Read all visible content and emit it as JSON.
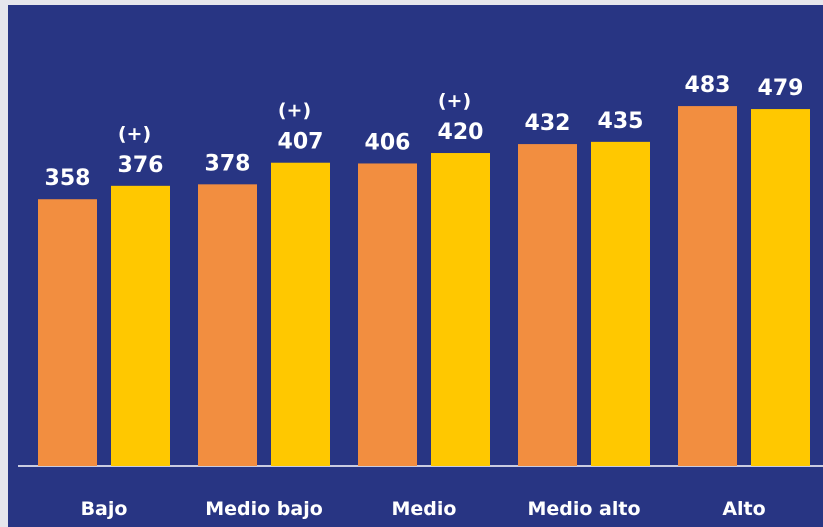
{
  "chart_data": {
    "type": "bar",
    "categories": [
      "Bajo",
      "Medio bajo",
      "Medio",
      "Medio alto",
      "Alto"
    ],
    "series": [
      {
        "color": "#f28e40",
        "values": [
          358,
          378,
          406,
          432,
          483
        ]
      },
      {
        "color": "#ffc800",
        "values": [
          376,
          407,
          420,
          435,
          479
        ],
        "annotations": [
          "(+)",
          "(+)",
          "(+)",
          null,
          null
        ]
      }
    ],
    "ylim": [
      0,
      620
    ],
    "background": "#283583"
  }
}
